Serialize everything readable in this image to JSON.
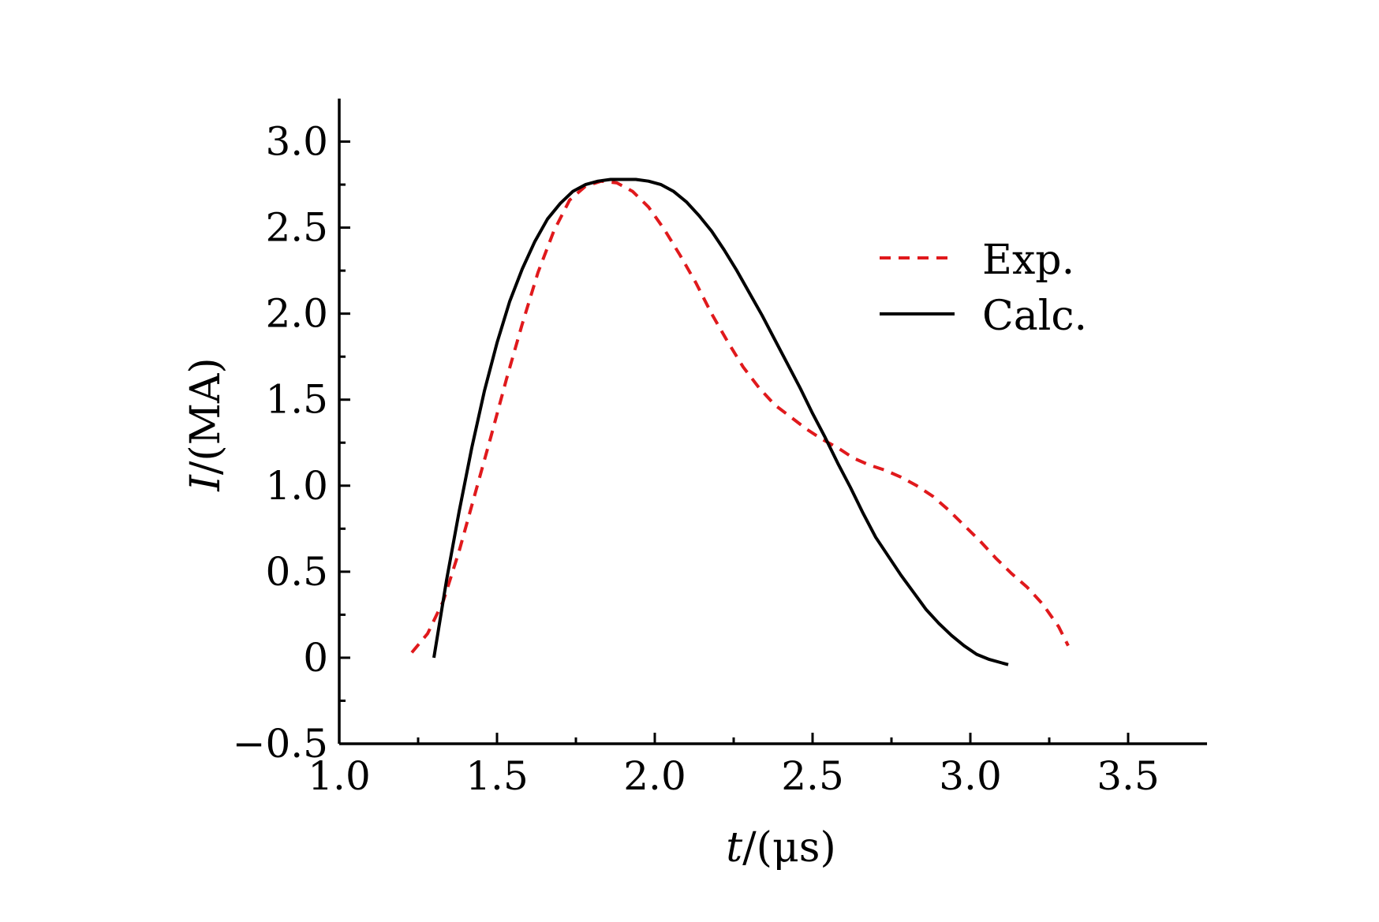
{
  "chart_data": {
    "type": "line",
    "title": "",
    "xlabel_var": "t",
    "xlabel_unit": "/(μs)",
    "ylabel_var": "I",
    "ylabel_unit": "/(MA)",
    "xlim": [
      1.0,
      3.75
    ],
    "ylim": [
      -0.5,
      3.25
    ],
    "xticks": [
      1.0,
      1.5,
      2.0,
      2.5,
      3.0,
      3.5
    ],
    "xtick_labels": [
      "1.0",
      "1.5",
      "2.0",
      "2.5",
      "3.0",
      "3.5"
    ],
    "xminor": [
      1.25,
      1.75,
      2.25,
      2.75,
      3.25
    ],
    "yticks": [
      -0.5,
      0,
      0.5,
      1.0,
      1.5,
      2.0,
      2.5,
      3.0
    ],
    "ytick_labels": [
      "−0.5",
      "0",
      "0.5",
      "1.0",
      "1.5",
      "2.0",
      "2.5",
      "3.0"
    ],
    "yminor": [
      -0.25,
      0.25,
      0.75,
      1.25,
      1.75,
      2.25,
      2.75
    ],
    "legend_position": "upper-right",
    "series": [
      {
        "name": "Exp.",
        "color": "#e0191c",
        "style": "dashed",
        "x": [
          1.23,
          1.28,
          1.33,
          1.38,
          1.43,
          1.48,
          1.53,
          1.58,
          1.63,
          1.68,
          1.73,
          1.78,
          1.83,
          1.88,
          1.93,
          1.98,
          2.03,
          2.08,
          2.13,
          2.18,
          2.23,
          2.28,
          2.33,
          2.38,
          2.43,
          2.48,
          2.53,
          2.58,
          2.63,
          2.68,
          2.73,
          2.78,
          2.83,
          2.88,
          2.93,
          2.98,
          3.03,
          3.08,
          3.13,
          3.18,
          3.23,
          3.28,
          3.31
        ],
        "y": [
          0.03,
          0.14,
          0.33,
          0.62,
          0.95,
          1.28,
          1.62,
          1.94,
          2.24,
          2.48,
          2.66,
          2.74,
          2.77,
          2.76,
          2.71,
          2.62,
          2.49,
          2.34,
          2.18,
          2.0,
          1.84,
          1.69,
          1.57,
          1.47,
          1.4,
          1.33,
          1.27,
          1.22,
          1.16,
          1.12,
          1.09,
          1.05,
          1.0,
          0.94,
          0.86,
          0.77,
          0.68,
          0.58,
          0.49,
          0.41,
          0.31,
          0.18,
          0.07
        ]
      },
      {
        "name": "Calc.",
        "color": "#000000",
        "style": "solid",
        "x": [
          1.3,
          1.34,
          1.38,
          1.42,
          1.46,
          1.5,
          1.54,
          1.58,
          1.62,
          1.66,
          1.7,
          1.74,
          1.78,
          1.82,
          1.86,
          1.9,
          1.94,
          1.98,
          2.02,
          2.06,
          2.1,
          2.14,
          2.18,
          2.22,
          2.26,
          2.3,
          2.34,
          2.38,
          2.42,
          2.46,
          2.5,
          2.54,
          2.58,
          2.62,
          2.66,
          2.7,
          2.74,
          2.78,
          2.82,
          2.86,
          2.9,
          2.94,
          2.98,
          3.02,
          3.06,
          3.1,
          3.12
        ],
        "y": [
          0.0,
          0.45,
          0.85,
          1.22,
          1.55,
          1.83,
          2.07,
          2.26,
          2.42,
          2.55,
          2.64,
          2.71,
          2.75,
          2.77,
          2.78,
          2.78,
          2.78,
          2.77,
          2.75,
          2.71,
          2.65,
          2.57,
          2.48,
          2.37,
          2.25,
          2.12,
          1.99,
          1.85,
          1.71,
          1.57,
          1.42,
          1.28,
          1.13,
          0.99,
          0.84,
          0.7,
          0.59,
          0.48,
          0.38,
          0.28,
          0.2,
          0.13,
          0.07,
          0.02,
          -0.01,
          -0.03,
          -0.04
        ]
      }
    ]
  }
}
